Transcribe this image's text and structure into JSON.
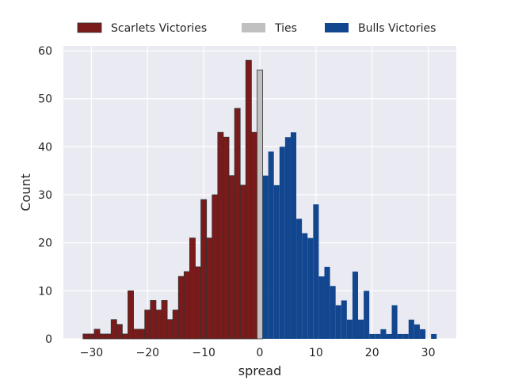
{
  "chart_data": {
    "type": "bar",
    "xlabel": "spread",
    "ylabel": "Count",
    "xlim": [
      -35,
      35
    ],
    "ylim": [
      0,
      61
    ],
    "xticks": [
      -30,
      -20,
      -10,
      0,
      10,
      20,
      30
    ],
    "xtick_labels": [
      "−30",
      "−20",
      "−10",
      "0",
      "10",
      "20",
      "30"
    ],
    "yticks": [
      0,
      10,
      20,
      30,
      40,
      50,
      60
    ],
    "grid": true,
    "legend_placement": "top-center",
    "bin_width": 1,
    "series": [
      {
        "name": "Scarlets Victories",
        "color": "#7b1a1a",
        "x": [
          -31,
          -30,
          -29,
          -28,
          -27,
          -26,
          -25,
          -24,
          -23,
          -22,
          -21,
          -20,
          -19,
          -18,
          -17,
          -16,
          -15,
          -14,
          -13,
          -12,
          -11,
          -10,
          -9,
          -8,
          -7,
          -6,
          -5,
          -4,
          -3,
          -2,
          -1
        ],
        "values": [
          1,
          1,
          2,
          1,
          1,
          4,
          3,
          1,
          10,
          2,
          2,
          6,
          8,
          6,
          8,
          4,
          6,
          13,
          14,
          21,
          15,
          29,
          21,
          30,
          43,
          42,
          34,
          48,
          32,
          58,
          43
        ]
      },
      {
        "name": "Ties",
        "color": "#c0c0c0",
        "x": [
          0
        ],
        "values": [
          56
        ]
      },
      {
        "name": "Bulls Victories",
        "color": "#12478f",
        "x": [
          1,
          2,
          3,
          4,
          5,
          6,
          7,
          8,
          9,
          10,
          11,
          12,
          13,
          14,
          15,
          16,
          17,
          18,
          19,
          20,
          21,
          22,
          23,
          24,
          25,
          26,
          27,
          28,
          29,
          30,
          31
        ],
        "values": [
          34,
          39,
          32,
          40,
          42,
          43,
          25,
          22,
          21,
          28,
          13,
          15,
          11,
          7,
          8,
          4,
          14,
          4,
          10,
          1,
          1,
          2,
          1,
          7,
          1,
          1,
          4,
          3,
          2,
          0,
          1
        ]
      }
    ]
  }
}
